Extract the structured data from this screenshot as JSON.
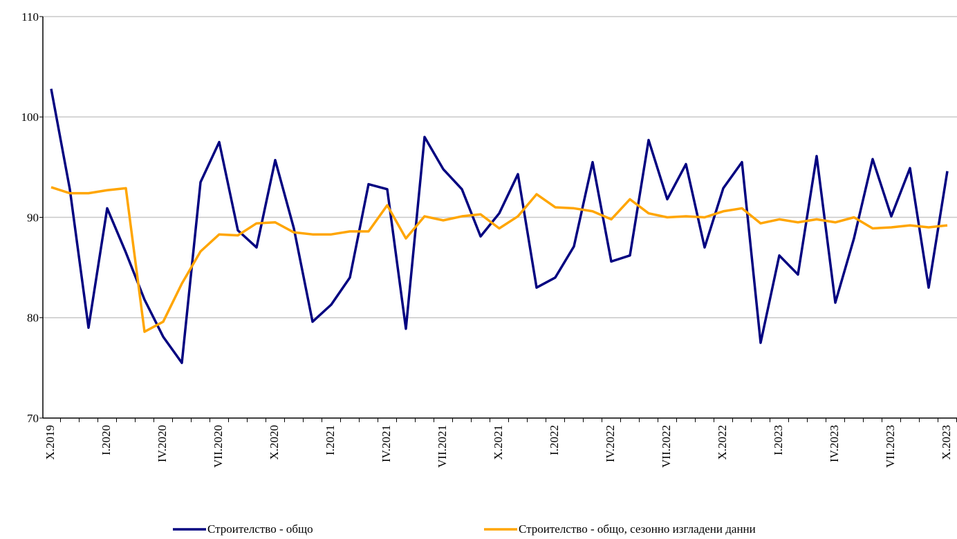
{
  "chart_data": {
    "type": "line",
    "categories": [
      "X.2019",
      null,
      null,
      "I.2020",
      null,
      null,
      "IV.2020",
      null,
      null,
      "VII.2020",
      null,
      null,
      "X.2020",
      null,
      null,
      "I.2021",
      null,
      null,
      "IV.2021",
      null,
      null,
      "VII.2021",
      null,
      null,
      "X.2021",
      null,
      null,
      "I.2022",
      null,
      null,
      "IV.2022",
      null,
      null,
      "VII.2022",
      null,
      null,
      "X.2022",
      null,
      null,
      "I.2023",
      null,
      null,
      "IV.2023",
      null,
      null,
      "VII.2023",
      null,
      null,
      "X.2023"
    ],
    "series": [
      {
        "name": "Строителство - общо",
        "color": "#000080",
        "values": [
          102.8,
          92.8,
          79.0,
          90.9,
          86.5,
          81.8,
          78.1,
          75.5,
          93.5,
          97.5,
          88.7,
          87.0,
          95.7,
          88.9,
          79.6,
          81.3,
          84.0,
          93.3,
          92.8,
          78.9,
          98.0,
          94.8,
          92.8,
          88.1,
          90.4,
          94.3,
          83.0,
          84.0,
          87.1,
          95.5,
          85.6,
          86.2,
          97.7,
          91.8,
          95.3,
          87.0,
          92.9,
          95.5,
          77.5,
          86.2,
          84.3,
          96.1,
          81.5,
          87.9,
          95.8,
          90.1,
          94.9,
          83.0,
          94.6
        ]
      },
      {
        "name": "Строителство - общо, сезонно изгладени данни",
        "color": "#ffa500",
        "values": [
          93.0,
          92.4,
          92.4,
          92.7,
          92.9,
          78.6,
          79.6,
          83.4,
          86.6,
          88.3,
          88.2,
          89.4,
          89.5,
          88.5,
          88.3,
          88.3,
          88.6,
          88.6,
          91.2,
          87.9,
          90.1,
          89.7,
          90.1,
          90.3,
          88.9,
          90.1,
          92.3,
          91.0,
          90.9,
          90.6,
          89.8,
          91.8,
          90.4,
          90.0,
          90.1,
          90.0,
          90.6,
          90.9,
          89.4,
          89.8,
          89.5,
          89.8,
          89.5,
          90.0,
          88.9,
          89.0,
          89.2,
          89.0,
          89.2
        ]
      }
    ],
    "ylim": [
      70,
      110
    ],
    "yticks": [
      70,
      80,
      90,
      100,
      110
    ],
    "grid": true
  }
}
